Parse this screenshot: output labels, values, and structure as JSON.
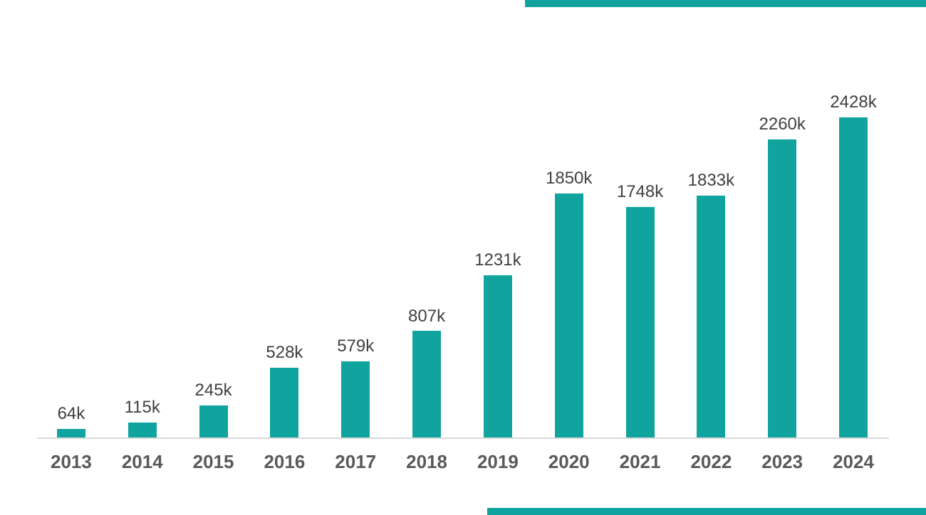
{
  "colors": {
    "accent_teal": "#11A49E",
    "value_label": "#404040",
    "category_label": "#595959",
    "axis_line": "#D9D9D9",
    "background": "#FFFFFF"
  },
  "chart_data": {
    "type": "bar",
    "categories": [
      "2013",
      "2014",
      "2015",
      "2016",
      "2017",
      "2018",
      "2019",
      "2020",
      "2021",
      "2022",
      "2023",
      "2024"
    ],
    "values": [
      64,
      115,
      245,
      528,
      579,
      807,
      1231,
      1850,
      1748,
      1833,
      2260,
      2428
    ],
    "value_labels": [
      "64k",
      "115k",
      "245k",
      "528k",
      "579k",
      "807k",
      "1231k",
      "1850k",
      "1748k",
      "1833k",
      "2260k",
      "2428k"
    ],
    "unit": "k",
    "title": "",
    "xlabel": "",
    "ylabel": "",
    "ylim": [
      0,
      2428
    ],
    "grid": false,
    "legend": false,
    "y_axis_visible": false,
    "bar_color": "#11A49E",
    "data_labels_position": "above-bar"
  },
  "decorations": {
    "top_accent_bar": {
      "color": "#11A49E"
    },
    "bottom_accent_bar": {
      "color": "#11A49E"
    }
  }
}
